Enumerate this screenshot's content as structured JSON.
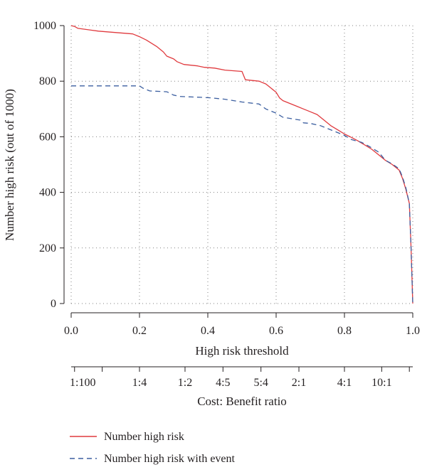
{
  "chart_data": {
    "type": "line",
    "title": "",
    "xlabel": "High risk threshold",
    "ylabel": "Number high risk (out of 1000)",
    "secondary_xlabel": "Cost: Benefit ratio",
    "xlim": [
      0,
      1
    ],
    "ylim": [
      0,
      1000
    ],
    "grid": true,
    "legend_position": "bottom-left",
    "x_ticks": [
      {
        "value": 0.0,
        "label": "0.0"
      },
      {
        "value": 0.2,
        "label": "0.2"
      },
      {
        "value": 0.4,
        "label": "0.4"
      },
      {
        "value": 0.6,
        "label": "0.6"
      },
      {
        "value": 0.8,
        "label": "0.8"
      },
      {
        "value": 1.0,
        "label": "1.0"
      }
    ],
    "y_ticks": [
      {
        "value": 0,
        "label": "0"
      },
      {
        "value": 200,
        "label": "200"
      },
      {
        "value": 400,
        "label": "400"
      },
      {
        "value": 600,
        "label": "600"
      },
      {
        "value": 800,
        "label": "800"
      },
      {
        "value": 1000,
        "label": "1000"
      }
    ],
    "cost_benefit_ticks": [
      {
        "value": 0.0099,
        "label": "1:100"
      },
      {
        "value": 0.2,
        "label": "1:4"
      },
      {
        "value": 0.3333,
        "label": "1:2"
      },
      {
        "value": 0.4444,
        "label": "4:5"
      },
      {
        "value": 0.5556,
        "label": "5:4"
      },
      {
        "value": 0.6667,
        "label": "2:1"
      },
      {
        "value": 0.8,
        "label": "4:1"
      },
      {
        "value": 0.9091,
        "label": "10:1"
      }
    ],
    "cost_benefit_minor_ticks": [
      0.0099,
      0.0909,
      0.2,
      0.3333,
      0.4444,
      0.5556,
      0.6667,
      0.8,
      0.9091,
      0.99
    ],
    "series": [
      {
        "name": "Number high risk",
        "color": "#e03a3e",
        "dash": "solid",
        "x": [
          0.0,
          0.01,
          0.02,
          0.08,
          0.18,
          0.2,
          0.22,
          0.25,
          0.27,
          0.28,
          0.3,
          0.31,
          0.33,
          0.37,
          0.39,
          0.42,
          0.45,
          0.5,
          0.51,
          0.55,
          0.57,
          0.58,
          0.6,
          0.61,
          0.62,
          0.64,
          0.66,
          0.68,
          0.7,
          0.72,
          0.74,
          0.76,
          0.78,
          0.8,
          0.82,
          0.84,
          0.86,
          0.88,
          0.9,
          0.92,
          0.94,
          0.96,
          0.97,
          0.98,
          0.99,
          0.995,
          1.0
        ],
        "y": [
          1000,
          997,
          990,
          980,
          970,
          960,
          948,
          925,
          905,
          890,
          880,
          870,
          860,
          855,
          850,
          847,
          840,
          835,
          805,
          800,
          790,
          780,
          760,
          740,
          730,
          720,
          710,
          700,
          690,
          680,
          660,
          640,
          625,
          610,
          598,
          585,
          570,
          555,
          535,
          515,
          500,
          480,
          450,
          410,
          360,
          200,
          0
        ]
      },
      {
        "name": "Number high risk with event",
        "color": "#3c5fa0",
        "dash": "dashed",
        "x": [
          0.0,
          0.2,
          0.21,
          0.23,
          0.28,
          0.3,
          0.32,
          0.38,
          0.41,
          0.45,
          0.5,
          0.55,
          0.57,
          0.6,
          0.62,
          0.67,
          0.68,
          0.7,
          0.73,
          0.75,
          0.78,
          0.8,
          0.82,
          0.85,
          0.87,
          0.9,
          0.92,
          0.94,
          0.96,
          0.97,
          0.98,
          0.99,
          0.995,
          1.0
        ],
        "y": [
          783,
          783,
          775,
          765,
          762,
          750,
          745,
          742,
          740,
          735,
          725,
          718,
          700,
          685,
          670,
          660,
          650,
          648,
          640,
          630,
          615,
          605,
          590,
          580,
          567,
          545,
          515,
          502,
          485,
          455,
          415,
          360,
          200,
          0
        ]
      }
    ]
  }
}
